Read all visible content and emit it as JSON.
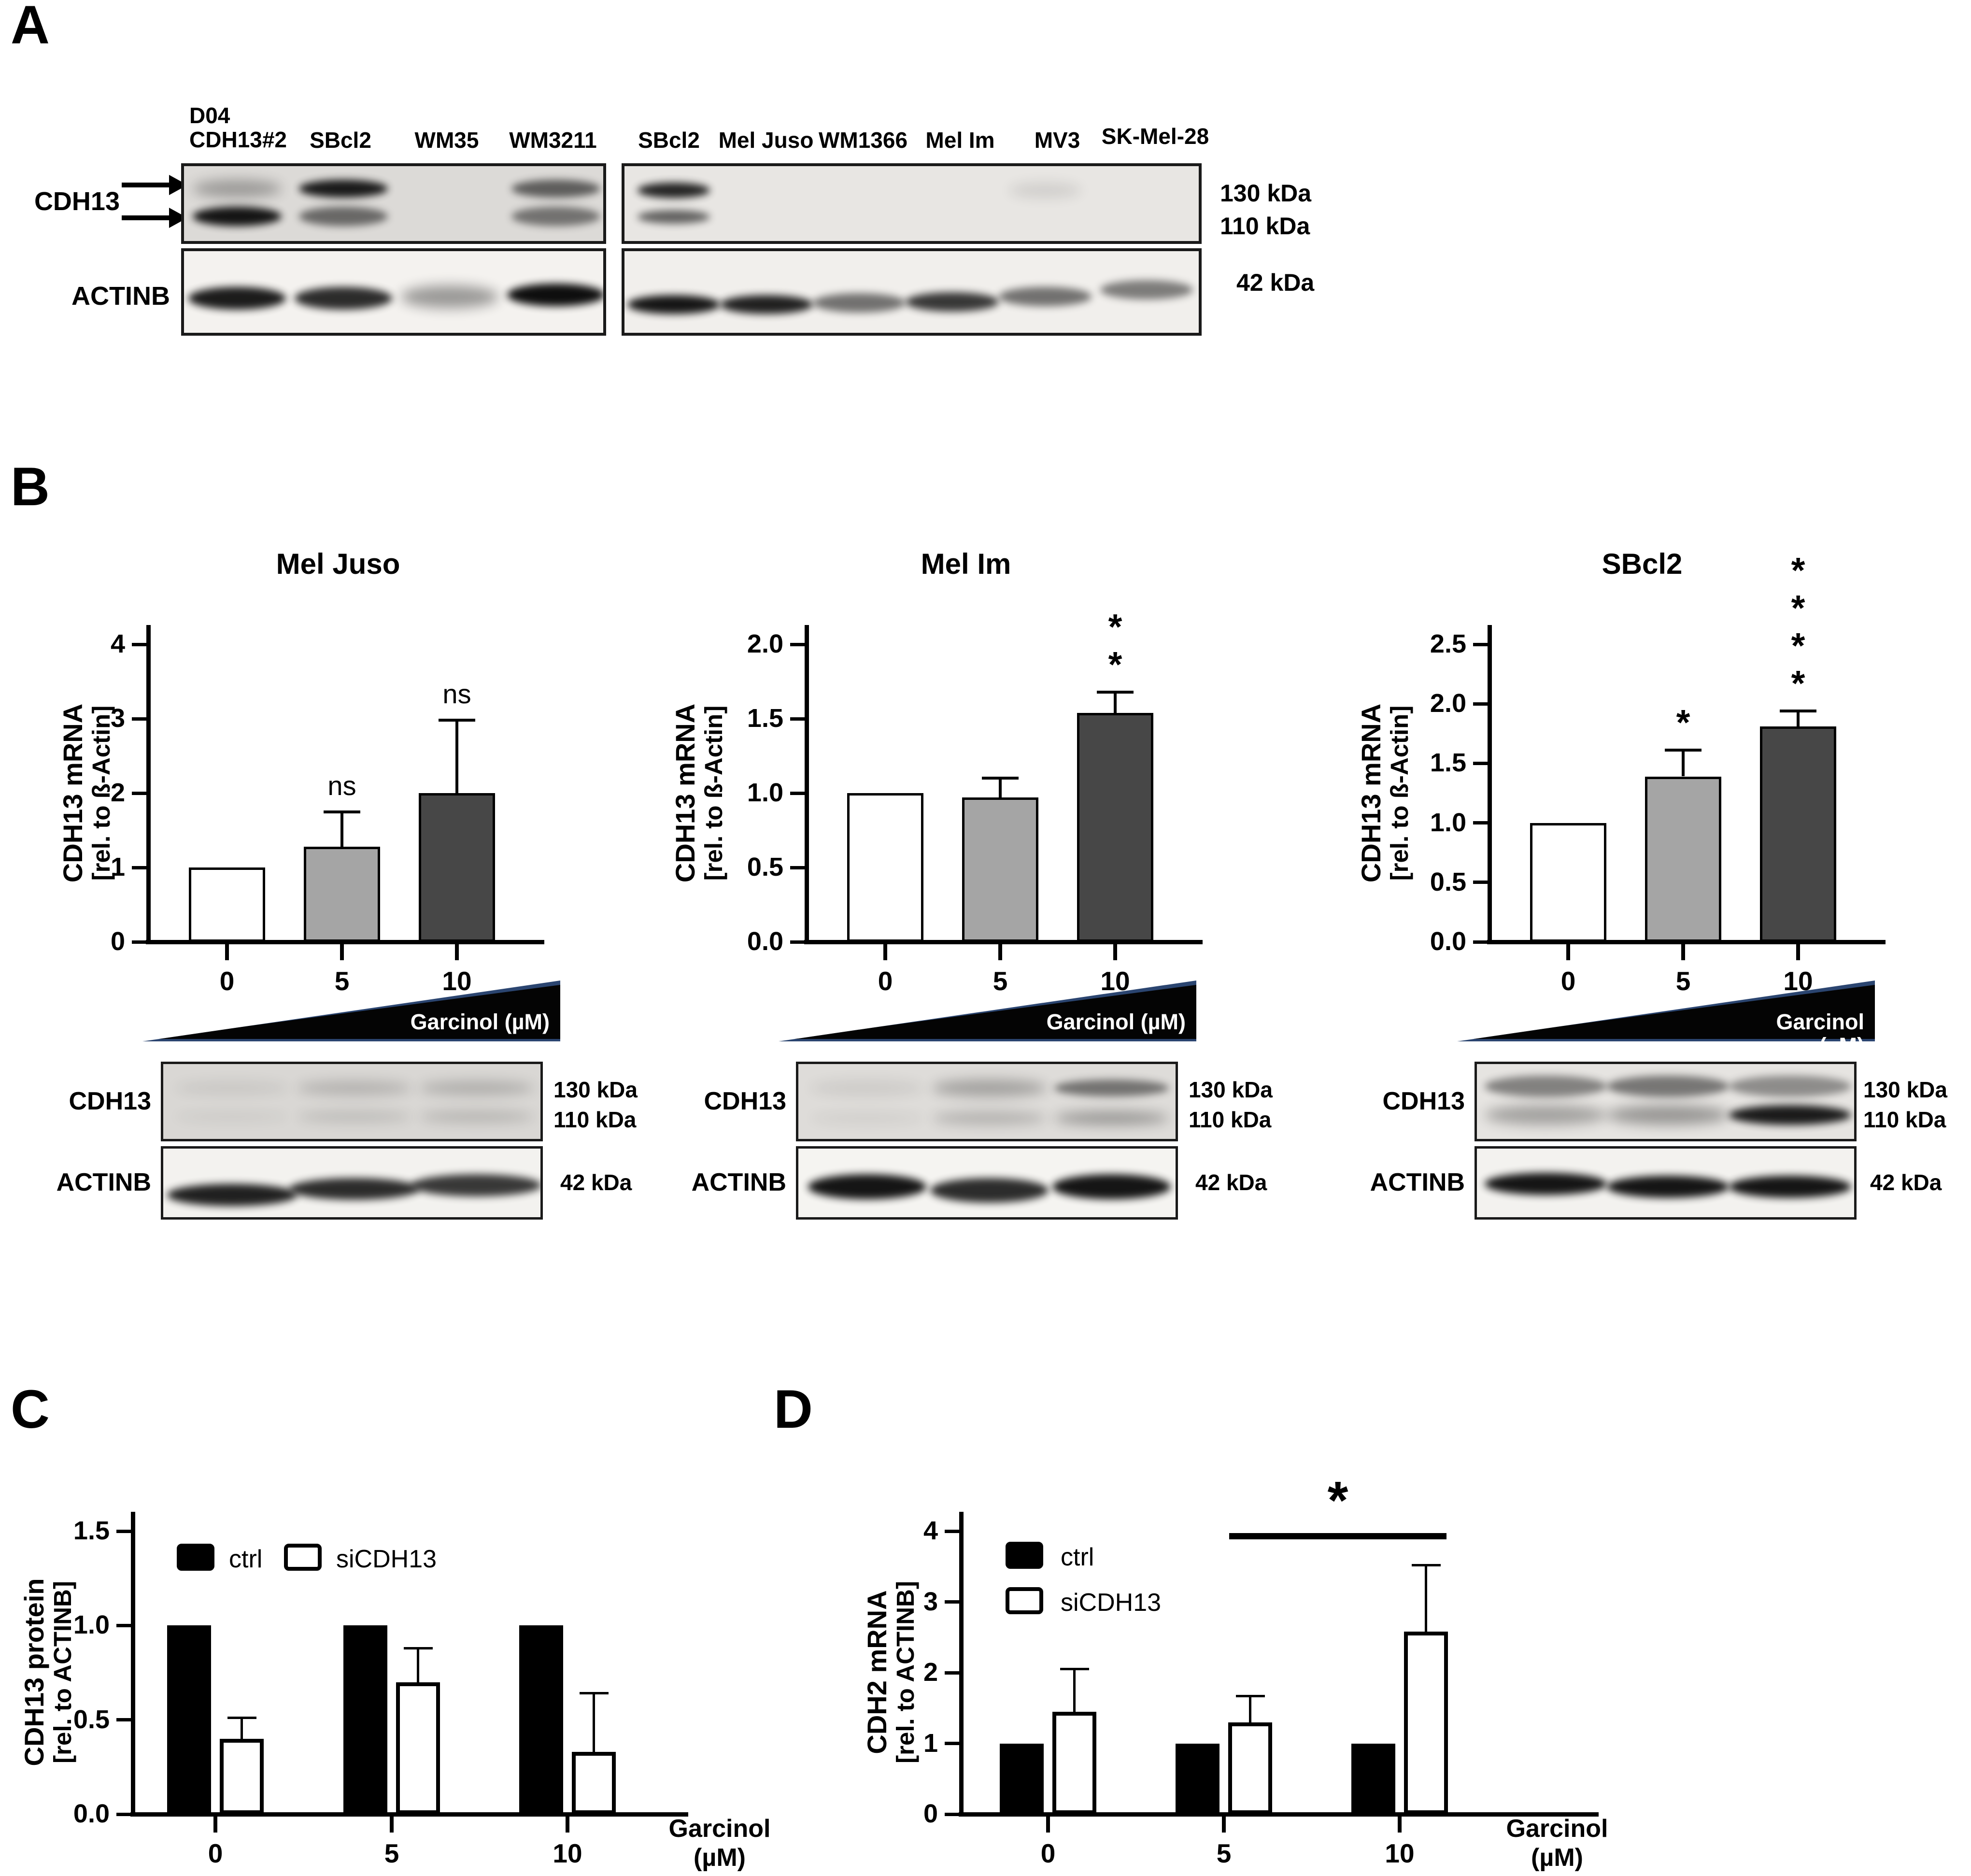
{
  "panels": {
    "a": {
      "label": "A",
      "left_lanes": [
        "D04\nCDH13#2",
        "SBcl2",
        "WM35",
        "WM3211"
      ],
      "right_lanes": [
        "SBcl2",
        "Mel Juso",
        "WM1366",
        "Mel Im",
        "MV3",
        "SK-Mel-28"
      ],
      "row_label_cdh13": "CDH13",
      "row_label_actinb": "ACTINB",
      "mw_130": "130 kDa",
      "mw_110": "110 kDa",
      "mw_42": "42 kDa"
    },
    "b": {
      "label": "B",
      "wedge_label": "Garcinol (µM)",
      "row_label_cdh13": "CDH13",
      "row_label_actinb": "ACTINB",
      "mw_130": "130 kDa",
      "mw_110": "110 kDa",
      "mw_42": "42 kDa"
    },
    "c": {
      "label": "C",
      "xaxis_label": "Garcinol\n(µM)"
    },
    "d": {
      "label": "D",
      "xaxis_label": "Garcinol\n(µM)"
    }
  },
  "chart_data": [
    {
      "id": "mel_juso",
      "type": "bar",
      "title": "Mel Juso",
      "ylabel": "CDH13 mRNA",
      "ylabel2": "[rel. to ß-Actin]",
      "xlabel": "Garcinol (µM)",
      "categories": [
        "0",
        "5",
        "10"
      ],
      "values": [
        1.0,
        1.28,
        2.0
      ],
      "errors": [
        0,
        0.47,
        0.98
      ],
      "sig": [
        "",
        "ns",
        "ns"
      ],
      "ymax": 4,
      "yticks": [
        "0",
        "1",
        "2",
        "3",
        "4"
      ],
      "bar_colors": [
        "#ffffff",
        "#a5a5a5",
        "#474747"
      ]
    },
    {
      "id": "mel_im",
      "type": "bar",
      "title": "Mel Im",
      "ylabel": "CDH13 mRNA",
      "ylabel2": "[rel. to ß-Actin]",
      "xlabel": "Garcinol (µM)",
      "categories": [
        "0",
        "5",
        "10"
      ],
      "values": [
        1.0,
        0.97,
        1.54
      ],
      "errors": [
        0,
        0.13,
        0.14
      ],
      "sig": [
        "",
        "",
        "**"
      ],
      "ymax": 2.0,
      "yticks": [
        "0.0",
        "0.5",
        "1.0",
        "1.5",
        "2.0"
      ],
      "bar_colors": [
        "#ffffff",
        "#a5a5a5",
        "#474747"
      ]
    },
    {
      "id": "sbcl2",
      "type": "bar",
      "title": "SBcl2",
      "ylabel": "CDH13 mRNA",
      "ylabel2": "[rel. to ß-Actin]",
      "xlabel": "Garcinol (µM)",
      "categories": [
        "0",
        "5",
        "10"
      ],
      "values": [
        1.0,
        1.39,
        1.81
      ],
      "errors": [
        0,
        0.22,
        0.13
      ],
      "sig": [
        "",
        "*",
        "****"
      ],
      "ymax": 2.5,
      "yticks": [
        "0.0",
        "0.5",
        "1.0",
        "1.5",
        "2.0",
        "2.5"
      ],
      "bar_colors": [
        "#ffffff",
        "#a5a5a5",
        "#474747"
      ]
    },
    {
      "id": "cdh13_protein",
      "type": "grouped_bar",
      "title": "",
      "ylabel": "CDH13 protein",
      "ylabel2": "[rel. to ACTINB]",
      "xlabel": "Garcinol (µM)",
      "categories": [
        "0",
        "5",
        "10"
      ],
      "series": [
        {
          "name": "ctrl",
          "color": "#000000",
          "values": [
            1.0,
            1.0,
            1.0
          ],
          "errors": [
            0,
            0,
            0
          ]
        },
        {
          "name": "siCDH13",
          "color": "#ffffff",
          "values": [
            0.4,
            0.7,
            0.33
          ],
          "errors": [
            0.11,
            0.18,
            0.31
          ]
        }
      ],
      "ymax": 1.5,
      "yticks": [
        "0.0",
        "0.5",
        "1.0",
        "1.5"
      ]
    },
    {
      "id": "cdh2_mrna",
      "type": "grouped_bar",
      "title": "",
      "ylabel": "CDH2 mRNA",
      "ylabel2": "[rel. to ACTINB]",
      "xlabel": "Garcinol (µM)",
      "categories": [
        "0",
        "5",
        "10"
      ],
      "series": [
        {
          "name": "ctrl",
          "color": "#000000",
          "values": [
            1.0,
            1.0,
            1.0
          ],
          "errors": [
            0,
            0,
            0
          ]
        },
        {
          "name": "siCDH13",
          "color": "#ffffff",
          "values": [
            1.45,
            1.3,
            2.58
          ],
          "errors": [
            0.6,
            0.37,
            0.94
          ]
        }
      ],
      "ymax": 4,
      "yticks": [
        "0",
        "1",
        "2",
        "3",
        "4"
      ],
      "sig_bar": {
        "between": [
          "5",
          "10"
        ],
        "label": "*"
      }
    }
  ],
  "blots": [
    {
      "id": "a-cdh13-left",
      "lanes": [
        0.125,
        0.375,
        0.625,
        0.875
      ],
      "band_w": 0.21,
      "rows": [
        {
          "y": 0.28,
          "h": 0.22,
          "i": [
            0.3,
            0.92,
            0,
            0.6
          ]
        },
        {
          "y": 0.62,
          "h": 0.24,
          "i": [
            0.95,
            0.55,
            0,
            0.5
          ]
        }
      ]
    },
    {
      "id": "a-actinb-left",
      "lanes": [
        0.125,
        0.375,
        0.625,
        0.875
      ],
      "band_w": 0.23,
      "rows": [
        {
          "y": 0.52,
          "h": 0.26,
          "i": [
            0.92,
            0.85,
            0.38,
            0.98
          ],
          "dy": [
            0.02,
            0.02,
            0.0,
            -0.02
          ]
        }
      ]
    },
    {
      "id": "a-cdh13-right",
      "lanes": [
        0.085,
        0.245,
        0.405,
        0.565,
        0.725,
        0.9
      ],
      "band_w": 0.125,
      "rows": [
        {
          "y": 0.3,
          "h": 0.19,
          "i": [
            0.88,
            0,
            0,
            0,
            0.1,
            0
          ]
        },
        {
          "y": 0.63,
          "h": 0.17,
          "i": [
            0.6,
            0,
            0,
            0,
            0,
            0
          ]
        }
      ]
    },
    {
      "id": "a-actinb-right",
      "lanes": [
        0.085,
        0.245,
        0.405,
        0.565,
        0.725,
        0.9
      ],
      "band_w": 0.16,
      "rows": [
        {
          "y": 0.56,
          "h": 0.22,
          "i": [
            0.95,
            0.9,
            0.55,
            0.8,
            0.55,
            0.5
          ],
          "dy": [
            0.05,
            0.05,
            0.03,
            0.02,
            -0.04,
            -0.12
          ]
        }
      ]
    },
    {
      "id": "b1-cdh13",
      "lanes": [
        0.18,
        0.5,
        0.82
      ],
      "band_w": 0.3,
      "rows": [
        {
          "y": 0.3,
          "h": 0.17,
          "i": [
            0.07,
            0.18,
            0.2
          ]
        },
        {
          "y": 0.66,
          "h": 0.15,
          "i": [
            0.05,
            0.13,
            0.17
          ]
        }
      ]
    },
    {
      "id": "b1-actinb",
      "lanes": [
        0.18,
        0.5,
        0.82
      ],
      "band_w": 0.34,
      "rows": [
        {
          "y": 0.55,
          "h": 0.3,
          "i": [
            0.9,
            0.85,
            0.8
          ],
          "dy": [
            0.08,
            0.0,
            -0.05
          ]
        }
      ]
    },
    {
      "id": "b2-cdh13",
      "lanes": [
        0.18,
        0.5,
        0.82
      ],
      "band_w": 0.3,
      "rows": [
        {
          "y": 0.3,
          "h": 0.21,
          "i": [
            0.07,
            0.28,
            0.5
          ]
        },
        {
          "y": 0.68,
          "h": 0.17,
          "i": [
            0.05,
            0.2,
            0.32
          ]
        }
      ]
    },
    {
      "id": "b2-actinb",
      "lanes": [
        0.18,
        0.5,
        0.82
      ],
      "band_w": 0.31,
      "rows": [
        {
          "y": 0.52,
          "h": 0.34,
          "i": [
            0.95,
            0.85,
            0.95
          ],
          "dy": [
            0.0,
            0.05,
            0.0
          ]
        }
      ]
    },
    {
      "id": "b3-cdh13",
      "lanes": [
        0.18,
        0.5,
        0.82
      ],
      "band_w": 0.32,
      "rows": [
        {
          "y": 0.28,
          "h": 0.27,
          "i": [
            0.45,
            0.5,
            0.4
          ]
        },
        {
          "y": 0.64,
          "h": 0.25,
          "i": [
            0.3,
            0.35,
            0.92
          ]
        }
      ]
    },
    {
      "id": "b3-actinb",
      "lanes": [
        0.18,
        0.5,
        0.82
      ],
      "band_w": 0.32,
      "rows": [
        {
          "y": 0.48,
          "h": 0.3,
          "i": [
            0.95,
            0.95,
            0.95
          ],
          "dy": [
            0.0,
            0.04,
            0.04
          ]
        }
      ]
    }
  ]
}
